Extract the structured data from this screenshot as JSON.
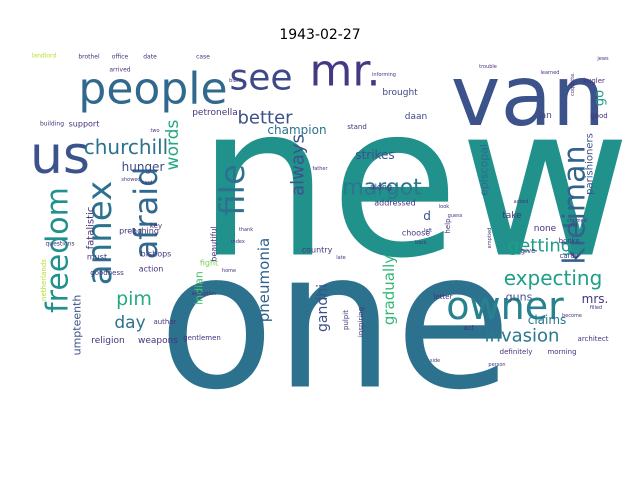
{
  "chart_data": {
    "type": "wordcloud",
    "title": "1943-02-27",
    "colormap": "viridis",
    "words": [
      {
        "text": "new",
        "rank": 1.0,
        "color": "#21918c"
      },
      {
        "text": "one",
        "rank": 0.93,
        "color": "#2c728e"
      },
      {
        "text": "van",
        "rank": 0.62,
        "color": "#3b528b"
      },
      {
        "text": "people",
        "rank": 0.42,
        "color": "#31688e"
      },
      {
        "text": "us",
        "rank": 0.4,
        "color": "#3b528b"
      },
      {
        "text": "mr.",
        "rank": 0.38,
        "color": "#443983"
      },
      {
        "text": "see",
        "rank": 0.3,
        "color": "#3e4989"
      },
      {
        "text": "owner",
        "rank": 0.34,
        "color": "#26828e"
      },
      {
        "text": "annex",
        "rank": 0.32,
        "color": "#2c728e"
      },
      {
        "text": "freedom",
        "rank": 0.3,
        "color": "#21918c"
      },
      {
        "text": "afraid",
        "rank": 0.3,
        "color": "#31688e"
      },
      {
        "text": "file",
        "rank": 0.3,
        "color": "#2c728e"
      },
      {
        "text": "kleiman",
        "rank": 0.28,
        "color": "#33638d"
      },
      {
        "text": "margot",
        "rank": 0.18,
        "color": "#2a788e"
      },
      {
        "text": "invasion",
        "rank": 0.15,
        "color": "#2a788e"
      },
      {
        "text": "expecting",
        "rank": 0.15,
        "color": "#1f9e89"
      },
      {
        "text": "churchill",
        "rank": 0.15,
        "color": "#2c728e"
      },
      {
        "text": "always",
        "rank": 0.15,
        "color": "#3b528b"
      },
      {
        "text": "words",
        "rank": 0.14,
        "color": "#22a884"
      },
      {
        "text": "better",
        "rank": 0.14,
        "color": "#3b528b"
      },
      {
        "text": "pneumonia",
        "rank": 0.12,
        "color": "#33638d"
      },
      {
        "text": "getting",
        "rank": 0.13,
        "color": "#1f9e89"
      },
      {
        "text": "gradually",
        "rank": 0.12,
        "color": "#35b779"
      },
      {
        "text": "pim",
        "rank": 0.13,
        "color": "#25ab82"
      },
      {
        "text": "day",
        "rank": 0.13,
        "color": "#2c728e"
      },
      {
        "text": "gandhi",
        "rank": 0.11,
        "color": "#3b528b"
      },
      {
        "text": "champion",
        "rank": 0.1,
        "color": "#2c728e"
      },
      {
        "text": "strikes",
        "rank": 0.09,
        "color": "#3b528b"
      },
      {
        "text": "hunger",
        "rank": 0.09,
        "color": "#3e4989"
      },
      {
        "text": "mrs.",
        "rank": 0.08,
        "color": "#46337e"
      },
      {
        "text": "go",
        "rank": 0.08,
        "color": "#1f9e89"
      },
      {
        "text": "claims",
        "rank": 0.08,
        "color": "#2a788e"
      },
      {
        "text": "guns",
        "rank": 0.07,
        "color": "#3b528b"
      },
      {
        "text": "indian",
        "rank": 0.07,
        "color": "#4ac16d"
      },
      {
        "text": "episcopal",
        "rank": 0.07,
        "color": "#31688e"
      },
      {
        "text": "parishioners",
        "rank": 0.06,
        "color": "#3b528b"
      },
      {
        "text": "umpteenth",
        "rank": 0.06,
        "color": "#3b528b"
      },
      {
        "text": "fatalistic",
        "rank": 0.06,
        "color": "#46337e"
      },
      {
        "text": "religion",
        "rank": 0.06,
        "color": "#46337e"
      },
      {
        "text": "weapons",
        "rank": 0.06,
        "color": "#46337e"
      },
      {
        "text": "petronella",
        "rank": 0.06,
        "color": "#46337e"
      },
      {
        "text": "brought",
        "rank": 0.06,
        "color": "#3e4989"
      },
      {
        "text": "daan",
        "rank": 0.06,
        "color": "#3e4989"
      },
      {
        "text": "jan",
        "rank": 0.06,
        "color": "#3e4989"
      },
      {
        "text": "none",
        "rank": 0.06,
        "color": "#46337e"
      },
      {
        "text": "take",
        "rank": 0.06,
        "color": "#46337e"
      },
      {
        "text": "d",
        "rank": 0.07,
        "color": "#3b528b"
      },
      {
        "text": "choose",
        "rank": 0.05,
        "color": "#46337e"
      },
      {
        "text": "addressed",
        "rank": 0.05,
        "color": "#46337e"
      },
      {
        "text": "along",
        "rank": 0.05,
        "color": "#46337e"
      },
      {
        "text": "support",
        "rank": 0.05,
        "color": "#46337e"
      },
      {
        "text": "must",
        "rank": 0.05,
        "color": "#46337e"
      },
      {
        "text": "bishops",
        "rank": 0.05,
        "color": "#46337e"
      },
      {
        "text": "action",
        "rank": 0.05,
        "color": "#46337e"
      },
      {
        "text": "preaching",
        "rank": 0.05,
        "color": "#46337e"
      },
      {
        "text": "beautiful",
        "rank": 0.05,
        "color": "#46337e"
      },
      {
        "text": "fight",
        "rank": 0.05,
        "color": "#7ad151"
      },
      {
        "text": "country",
        "rank": 0.05,
        "color": "#46337e"
      },
      {
        "text": "pulpit",
        "rank": 0.05,
        "color": "#46337e"
      },
      {
        "text": "inspiring",
        "rank": 0.05,
        "color": "#46337e"
      },
      {
        "text": "stand",
        "rank": 0.05,
        "color": "#46337e"
      },
      {
        "text": "help",
        "rank": 0.05,
        "color": "#46337e"
      },
      {
        "text": "give",
        "rank": 0.05,
        "color": "#46337e"
      },
      {
        "text": "letter",
        "rank": 0.05,
        "color": "#46337e"
      },
      {
        "text": "act",
        "rank": 0.05,
        "color": "#46337e"
      },
      {
        "text": "definitely",
        "rank": 0.05,
        "color": "#46337e"
      },
      {
        "text": "morning",
        "rank": 0.05,
        "color": "#46337e"
      },
      {
        "text": "architect",
        "rank": 0.05,
        "color": "#46337e"
      },
      {
        "text": "good",
        "rank": 0.05,
        "color": "#46337e"
      },
      {
        "text": "kugler",
        "rank": 0.05,
        "color": "#46337e"
      },
      {
        "text": "books",
        "rank": 0.05,
        "color": "#46337e"
      },
      {
        "text": "cards",
        "rank": 0.05,
        "color": "#46337e"
      },
      {
        "text": "goodness",
        "rank": 0.05,
        "color": "#46337e"
      },
      {
        "text": "key",
        "rank": 0.05,
        "color": "#46337e"
      },
      {
        "text": "author",
        "rank": 0.05,
        "color": "#46337e"
      },
      {
        "text": "gentlemen",
        "rank": 0.05,
        "color": "#46337e"
      },
      {
        "text": "netherlands",
        "rank": 0.05,
        "color": "#b5de2b"
      },
      {
        "text": "questions",
        "rank": 0.05,
        "color": "#46337e"
      },
      {
        "text": "building",
        "rank": 0.05,
        "color": "#46337e"
      },
      {
        "text": "arrived",
        "rank": 0.05,
        "color": "#46337e"
      },
      {
        "text": "landlord",
        "rank": 0.04,
        "color": "#b5de2b"
      },
      {
        "text": "brothel",
        "rank": 0.05,
        "color": "#46337e"
      },
      {
        "text": "office",
        "rank": 0.05,
        "color": "#46337e"
      },
      {
        "text": "date",
        "rank": 0.05,
        "color": "#46337e"
      },
      {
        "text": "case",
        "rank": 0.05,
        "color": "#46337e"
      },
      {
        "text": "informing",
        "rank": 0.04,
        "color": "#46337e"
      },
      {
        "text": "trouble",
        "rank": 0.04,
        "color": "#46337e"
      },
      {
        "text": "learned",
        "rank": 0.04,
        "color": "#46337e"
      },
      {
        "text": "coquette.",
        "rank": 0.04,
        "color": "#46337e"
      },
      {
        "text": "jews",
        "rank": 0.04,
        "color": "#46337e"
      },
      {
        "text": "secret",
        "rank": 0.04,
        "color": "#46337e"
      },
      {
        "text": "claimed",
        "rank": 0.04,
        "color": "#46337e"
      },
      {
        "text": "emptied",
        "rank": 0.04,
        "color": "#46337e"
      },
      {
        "text": "filled",
        "rank": 0.04,
        "color": "#46337e"
      },
      {
        "text": "look",
        "rank": 0.04,
        "color": "#46337e"
      },
      {
        "text": "guess",
        "rank": 0.04,
        "color": "#46337e"
      },
      {
        "text": "left",
        "rank": 0.04,
        "color": "#46337e"
      },
      {
        "text": "back",
        "rank": 0.04,
        "color": "#46337e"
      },
      {
        "text": "index",
        "rank": 0.04,
        "color": "#46337e"
      },
      {
        "text": "thank",
        "rank": 0.04,
        "color": "#46337e"
      },
      {
        "text": "home",
        "rank": 0.04,
        "color": "#46337e"
      },
      {
        "text": "late",
        "rank": 0.04,
        "color": "#46337e"
      },
      {
        "text": "side",
        "rank": 0.04,
        "color": "#46337e"
      },
      {
        "text": "person",
        "rank": 0.04,
        "color": "#46337e"
      },
      {
        "text": "card",
        "rank": 0.04,
        "color": "#46337e"
      },
      {
        "text": "showed",
        "rank": 0.04,
        "color": "#46337e"
      },
      {
        "text": "blank",
        "rank": 0.04,
        "color": "#46337e"
      },
      {
        "text": "father",
        "rank": 0.04,
        "color": "#46337e"
      },
      {
        "text": "exception",
        "rank": 0.04,
        "color": "#46337e"
      },
      {
        "text": "become",
        "rank": 0.04,
        "color": "#46337e"
      },
      {
        "text": "asked",
        "rank": 0.04,
        "color": "#46337e"
      },
      {
        "text": "two",
        "rank": 0.04,
        "color": "#46337e"
      }
    ]
  }
}
